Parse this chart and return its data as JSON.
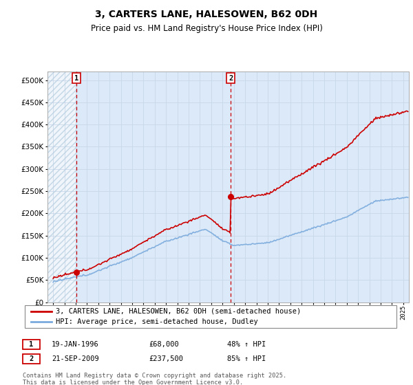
{
  "title": "3, CARTERS LANE, HALESOWEN, B62 0DH",
  "subtitle": "Price paid vs. HM Land Registry's House Price Index (HPI)",
  "legend_line1": "3, CARTERS LANE, HALESOWEN, B62 0DH (semi-detached house)",
  "legend_line2": "HPI: Average price, semi-detached house, Dudley",
  "footnote": "Contains HM Land Registry data © Crown copyright and database right 2025.\nThis data is licensed under the Open Government Licence v3.0.",
  "purchase1_date": "19-JAN-1996",
  "purchase1_price": 68000,
  "purchase1_label": "48% ↑ HPI",
  "purchase2_date": "21-SEP-2009",
  "purchase2_price": 237500,
  "purchase2_label": "85% ↑ HPI",
  "purchase1_x": 1996.05,
  "purchase2_x": 2009.72,
  "ylim": [
    0,
    520000
  ],
  "xlim_start": 1993.5,
  "xlim_end": 2025.5,
  "bg_color": "#dce9f8",
  "hatch_color": "#b8cfe0",
  "grid_color": "#c8d8e8",
  "red_line_color": "#cc0000",
  "blue_line_color": "#7aaadd",
  "marker_color": "#cc0000",
  "vline_color": "#cc0000",
  "yticks": [
    0,
    50000,
    100000,
    150000,
    200000,
    250000,
    300000,
    350000,
    400000,
    450000,
    500000
  ]
}
